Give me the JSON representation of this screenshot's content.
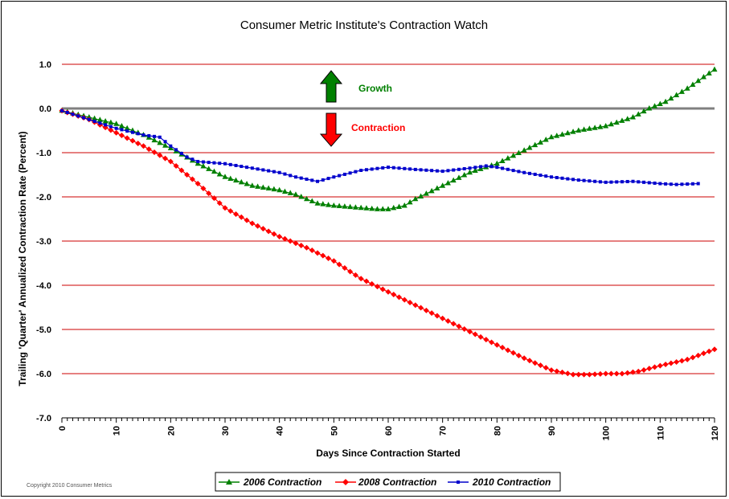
{
  "chart_data": {
    "type": "line",
    "title": "Consumer Metric Institute's Contraction Watch",
    "xlabel": "Days Since Contraction Started",
    "ylabel": "Trailing 'Quarter' Annualized Contraction Rate (Percent)",
    "xlim": [
      0,
      120
    ],
    "ylim": [
      -7.0,
      1.0
    ],
    "x_ticks": [
      "0",
      "10",
      "20",
      "30",
      "40",
      "50",
      "60",
      "70",
      "80",
      "90",
      "100",
      "110",
      "120"
    ],
    "y_ticks": [
      "1.0",
      "0.0",
      "-1.0",
      "-2.0",
      "-3.0",
      "-4.0",
      "-5.0",
      "-6.0",
      "-7.0"
    ],
    "grid": "horizontal",
    "legend_position": "bottom",
    "colors": {
      "grid": "#cc0000",
      "zero_line": "#808080",
      "up_arrow": "#008000",
      "down_arrow": "#ff0000"
    },
    "annotations": {
      "growth": {
        "text": "Growth",
        "color": "#008000"
      },
      "contraction": {
        "text": "Contraction",
        "color": "#ff0000"
      }
    },
    "series": [
      {
        "name": "2006 Contraction",
        "color": "#008000",
        "marker": "triangle",
        "x": [
          0,
          5,
          10,
          15,
          20,
          25,
          30,
          35,
          40,
          43,
          47,
          50,
          55,
          58,
          60,
          63,
          65,
          70,
          75,
          80,
          85,
          90,
          95,
          100,
          105,
          108,
          111,
          115,
          120
        ],
        "y": [
          -0.05,
          -0.2,
          -0.35,
          -0.6,
          -0.9,
          -1.25,
          -1.55,
          -1.75,
          -1.85,
          -1.95,
          -2.15,
          -2.2,
          -2.25,
          -2.28,
          -2.28,
          -2.2,
          -2.05,
          -1.75,
          -1.45,
          -1.25,
          -0.95,
          -0.65,
          -0.5,
          -0.4,
          -0.2,
          0.0,
          0.15,
          0.45,
          0.88
        ]
      },
      {
        "name": "2008 Contraction",
        "color": "#ff0000",
        "marker": "diamond",
        "x": [
          0,
          5,
          10,
          15,
          20,
          25,
          30,
          35,
          40,
          45,
          50,
          55,
          60,
          65,
          70,
          75,
          80,
          85,
          90,
          94,
          97,
          100,
          103,
          106,
          110,
          115,
          120
        ],
        "y": [
          -0.05,
          -0.25,
          -0.55,
          -0.85,
          -1.2,
          -1.7,
          -2.25,
          -2.6,
          -2.9,
          -3.15,
          -3.45,
          -3.85,
          -4.15,
          -4.45,
          -4.75,
          -5.05,
          -5.35,
          -5.65,
          -5.92,
          -6.02,
          -6.02,
          -6.0,
          -6.0,
          -5.95,
          -5.82,
          -5.68,
          -5.45
        ]
      },
      {
        "name": "2010 Contraction",
        "color": "#0000cc",
        "marker": "square",
        "x": [
          0,
          5,
          10,
          15,
          18,
          20,
          23,
          25,
          30,
          35,
          40,
          43,
          47,
          50,
          55,
          60,
          65,
          70,
          75,
          78,
          80,
          85,
          90,
          95,
          100,
          105,
          110,
          113,
          117
        ],
        "y": [
          -0.05,
          -0.25,
          -0.45,
          -0.6,
          -0.65,
          -0.85,
          -1.1,
          -1.2,
          -1.25,
          -1.35,
          -1.45,
          -1.55,
          -1.65,
          -1.55,
          -1.4,
          -1.33,
          -1.38,
          -1.42,
          -1.35,
          -1.3,
          -1.33,
          -1.45,
          -1.55,
          -1.62,
          -1.67,
          -1.65,
          -1.7,
          -1.72,
          -1.7
        ]
      }
    ]
  },
  "copyright": "Copyright 2010 Consumer Metrics"
}
